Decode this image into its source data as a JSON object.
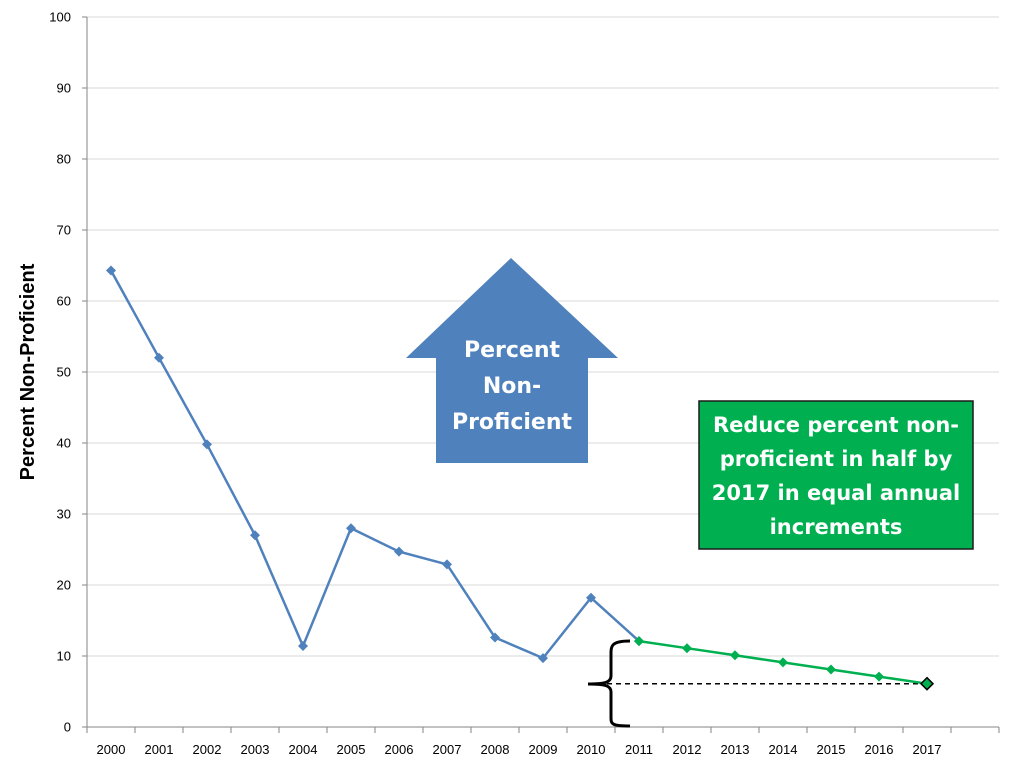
{
  "chart_data": {
    "type": "line",
    "ylabel": "Percent Non-Proficient",
    "xlabel": "",
    "title": "",
    "ylim": [
      0,
      100
    ],
    "yticks": [
      0,
      10,
      20,
      30,
      40,
      50,
      60,
      70,
      80,
      90,
      100
    ],
    "categories": [
      "2000",
      "2001",
      "2002",
      "2003",
      "2004",
      "2005",
      "2006",
      "2007",
      "2008",
      "2009",
      "2010",
      "2011",
      "2012",
      "2013",
      "2014",
      "2015",
      "2016",
      "2017"
    ],
    "grid": "horizontal",
    "series": [
      {
        "color": "#4f81bd",
        "x": [
          "2000",
          "2001",
          "2002",
          "2003",
          "2004",
          "2005",
          "2006",
          "2007",
          "2008",
          "2009",
          "2010",
          "2011"
        ],
        "values": [
          64.3,
          52.0,
          39.8,
          27.0,
          11.4,
          28.0,
          24.7,
          22.9,
          12.6,
          9.7,
          18.2,
          12.1
        ]
      },
      {
        "color": "#00b050",
        "x": [
          "2011",
          "2012",
          "2013",
          "2014",
          "2015",
          "2016",
          "2017"
        ],
        "values": [
          12.1,
          11.1,
          10.1,
          9.1,
          8.1,
          7.1,
          6.1
        ]
      }
    ],
    "reference_line": {
      "value": 6.1,
      "from": "2011",
      "to": "2017",
      "style": "dashed"
    },
    "annotations": {
      "arrow": {
        "lines": [
          "Percent",
          "Non-",
          "Proficient"
        ],
        "color": "#4f81bd"
      },
      "box": {
        "lines": [
          "Reduce percent non-",
          "proficient in half by",
          "2017 in equal annual",
          "increments"
        ],
        "color": "#00b050"
      }
    }
  }
}
